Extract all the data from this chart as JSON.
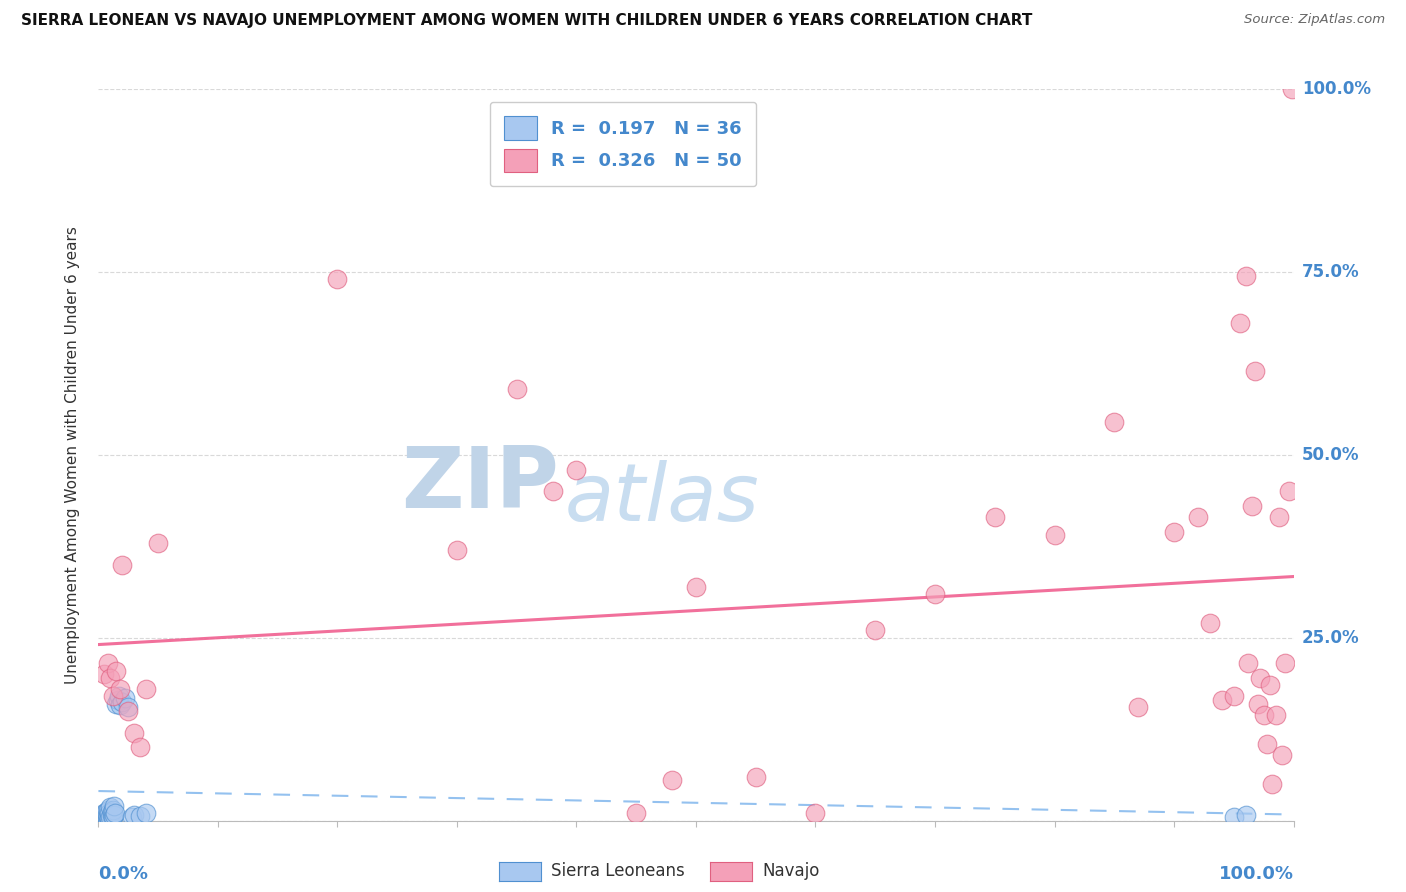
{
  "title": "SIERRA LEONEAN VS NAVAJO UNEMPLOYMENT AMONG WOMEN WITH CHILDREN UNDER 6 YEARS CORRELATION CHART",
  "source": "Source: ZipAtlas.com",
  "xlabel_bottom_left": "0.0%",
  "xlabel_bottom_right": "100.0%",
  "ylabel": "Unemployment Among Women with Children Under 6 years",
  "ytick_labels": [
    "0.0%",
    "25.0%",
    "50.0%",
    "75.0%",
    "100.0%"
  ],
  "ytick_positions": [
    0.0,
    0.25,
    0.5,
    0.75,
    1.0
  ],
  "legend_label1": "Sierra Leoneans",
  "legend_label2": "Navajo",
  "R1": "0.197",
  "N1": "36",
  "R2": "0.326",
  "N2": "50",
  "color_blue": "#a8c8f0",
  "color_pink": "#f4a0b8",
  "color_blue_dark": "#5090d0",
  "color_pink_dark": "#e06080",
  "color_blue_text": "#4488cc",
  "trendline_blue_color": "#88bbee",
  "trendline_pink_color": "#f06090",
  "watermark_zip_color": "#c0d4e8",
  "watermark_atlas_color": "#c8ddf0",
  "background_color": "#ffffff",
  "sierra_x": [
    0.002,
    0.003,
    0.004,
    0.004,
    0.005,
    0.005,
    0.006,
    0.006,
    0.007,
    0.007,
    0.008,
    0.008,
    0.009,
    0.009,
    0.01,
    0.01,
    0.011,
    0.011,
    0.012,
    0.012,
    0.013,
    0.013,
    0.014,
    0.015,
    0.016,
    0.017,
    0.018,
    0.02,
    0.022,
    0.025,
    0.028,
    0.03,
    0.035,
    0.04,
    0.95,
    0.96
  ],
  "sierra_y": [
    0.003,
    0.005,
    0.004,
    0.008,
    0.005,
    0.01,
    0.006,
    0.012,
    0.004,
    0.008,
    0.006,
    0.015,
    0.004,
    0.01,
    0.005,
    0.018,
    0.008,
    0.012,
    0.005,
    0.015,
    0.008,
    0.02,
    0.01,
    0.16,
    0.165,
    0.17,
    0.158,
    0.162,
    0.168,
    0.155,
    0.005,
    0.008,
    0.006,
    0.01,
    0.005,
    0.008
  ],
  "navajo_x": [
    0.005,
    0.008,
    0.01,
    0.012,
    0.015,
    0.018,
    0.02,
    0.025,
    0.03,
    0.035,
    0.04,
    0.05,
    0.2,
    0.3,
    0.35,
    0.38,
    0.4,
    0.45,
    0.48,
    0.5,
    0.55,
    0.6,
    0.65,
    0.7,
    0.75,
    0.8,
    0.85,
    0.87,
    0.9,
    0.92,
    0.93,
    0.94,
    0.95,
    0.955,
    0.96,
    0.962,
    0.965,
    0.968,
    0.97,
    0.972,
    0.975,
    0.978,
    0.98,
    0.982,
    0.985,
    0.988,
    0.99,
    0.993,
    0.996,
    0.999
  ],
  "navajo_y": [
    0.2,
    0.215,
    0.195,
    0.17,
    0.205,
    0.18,
    0.35,
    0.15,
    0.12,
    0.1,
    0.18,
    0.38,
    0.74,
    0.37,
    0.59,
    0.45,
    0.48,
    0.01,
    0.055,
    0.32,
    0.06,
    0.01,
    0.26,
    0.31,
    0.415,
    0.39,
    0.545,
    0.155,
    0.395,
    0.415,
    0.27,
    0.165,
    0.17,
    0.68,
    0.745,
    0.215,
    0.43,
    0.615,
    0.16,
    0.195,
    0.145,
    0.105,
    0.185,
    0.05,
    0.145,
    0.415,
    0.09,
    0.215,
    0.45,
    1.0
  ]
}
